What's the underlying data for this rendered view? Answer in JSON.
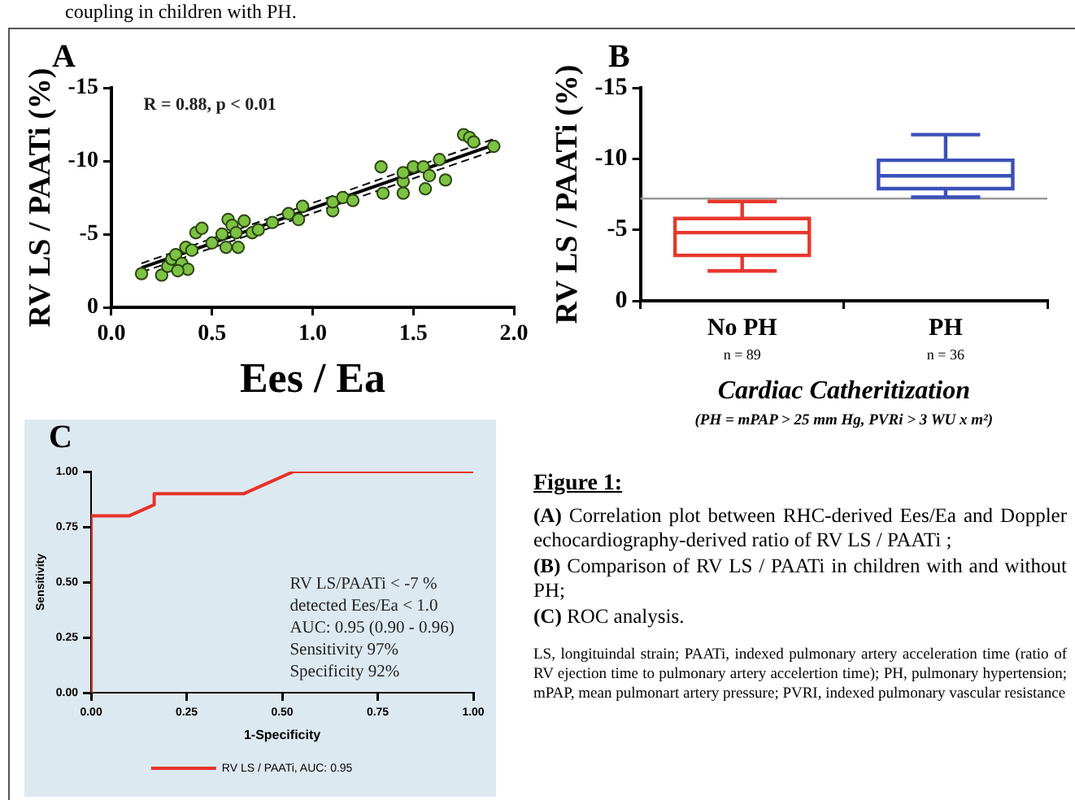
{
  "chart_data": [
    {
      "type": "other",
      "annotations": [
        "coupling in children with PH."
      ]
    },
    {
      "type": "scatter",
      "title": "A",
      "xlabel": "Ees / Ea",
      "ylabel": "RV LS / PAATi (%)",
      "xlim": [
        0,
        2
      ],
      "ylim": [
        0,
        -15
      ],
      "xticks": [
        {
          "value": 0,
          "label": "0.0"
        },
        {
          "value": 0.5,
          "label": "0.5"
        },
        {
          "value": 1,
          "label": "1.0"
        },
        {
          "value": 1.5,
          "label": "1.5"
        },
        {
          "value": 2,
          "label": "2.0"
        }
      ],
      "yticks": [
        -15,
        -10,
        -5,
        0
      ],
      "grid": false,
      "annotations": [
        "R = 0.88, p < 0.01"
      ],
      "series": [
        {
          "type": "scatter",
          "marker": "circle",
          "color": "#7dc242",
          "x": [
            0.15,
            0.25,
            0.28,
            0.3,
            0.32,
            0.35,
            0.37,
            0.38,
            0.33,
            0.4,
            0.42,
            0.45,
            0.5,
            0.55,
            0.57,
            0.58,
            0.6,
            0.62,
            0.63,
            0.66,
            0.7,
            0.73,
            0.8,
            0.88,
            0.93,
            0.95,
            1.1,
            1.1,
            1.15,
            1.2,
            1.34,
            1.35,
            1.45,
            1.45,
            1.45,
            1.5,
            1.55,
            1.56,
            1.58,
            1.63,
            1.66,
            1.75,
            1.78,
            1.8,
            1.9
          ],
          "values": [
            -2.3,
            -2.2,
            -2.8,
            -3.3,
            -3.6,
            -3.0,
            -4.1,
            -2.6,
            -2.5,
            -3.9,
            -5.1,
            -5.4,
            -4.4,
            -5.0,
            -4.1,
            -6.0,
            -5.6,
            -5.1,
            -4.1,
            -5.9,
            -5.1,
            -5.3,
            -5.8,
            -6.4,
            -6.0,
            -6.9,
            -6.6,
            -7.2,
            -7.5,
            -7.3,
            -9.6,
            -7.8,
            -7.8,
            -8.6,
            -9.2,
            -9.6,
            -9.6,
            -8.1,
            -9.0,
            -10.1,
            -8.7,
            -11.8,
            -11.6,
            -11.3,
            -11.0
          ]
        },
        {
          "type": "line",
          "marker": "none",
          "color": "#000000",
          "x": [
            0.15,
            1.9
          ],
          "values": [
            -2.7,
            -11.1
          ]
        },
        {
          "type": "line",
          "marker": "none",
          "line_style": "dashed",
          "color": "#000000",
          "x": [
            0.15,
            1.9
          ],
          "values": [
            -3.0,
            -11.5
          ]
        },
        {
          "type": "line",
          "marker": "none",
          "line_style": "dashed",
          "color": "#000000",
          "x": [
            0.15,
            1.9
          ],
          "values": [
            -2.4,
            -10.7
          ]
        }
      ]
    },
    {
      "type": "box",
      "title": "B",
      "categories": [
        "No PH",
        "PH"
      ],
      "xlabel": "Cardiac Catheritization",
      "ylabel": "RV LS / PAATi (%)",
      "ylim": [
        0,
        -15
      ],
      "yticks": [
        -15,
        -10,
        -5,
        0
      ],
      "grid": false,
      "boxes": [
        {
          "low": -7.0,
          "q1": -5.8,
          "median": -4.8,
          "q3": -3.2,
          "high": -2.1
        },
        {
          "low": -11.7,
          "q1": -9.9,
          "median": -8.8,
          "q3": -7.9,
          "high": -7.3
        }
      ],
      "colors": [
        "#e8382c",
        "#3c50b8"
      ],
      "ref_lines": [
        {
          "axis": "y",
          "value": -7.2,
          "color": "#999999"
        }
      ],
      "annotations": [
        "n = 89",
        "n = 36",
        "(PH = mPAP > 25 mm Hg, PVRi > 3 WU x m²)"
      ]
    },
    {
      "type": "line",
      "title": "C",
      "xlabel": "1-Specificity",
      "ylabel": "Sensitivity",
      "xlim": [
        0,
        1
      ],
      "ylim": [
        0,
        1
      ],
      "xticks": [
        {
          "value": 0,
          "label": "0.00"
        },
        {
          "value": 0.25,
          "label": "0.25"
        },
        {
          "value": 0.5,
          "label": "0.50"
        },
        {
          "value": 0.75,
          "label": "0.75"
        },
        {
          "value": 1,
          "label": "1.00"
        }
      ],
      "yticks": [
        {
          "value": 0,
          "label": "0.00"
        },
        {
          "value": 0.25,
          "label": "0.25"
        },
        {
          "value": 0.5,
          "label": "0.50"
        },
        {
          "value": 0.75,
          "label": "0.75"
        },
        {
          "value": 1,
          "label": "1.00"
        }
      ],
      "grid": false,
      "legend": "bottom",
      "marker": "none",
      "series": [
        {
          "name": "RV LS / PAATi, AUC: 0.95",
          "color": "#e8312a",
          "x": [
            0,
            0,
            0.1,
            0.165,
            0.165,
            0.4,
            0.53,
            1
          ],
          "values": [
            0,
            0.8,
            0.8,
            0.85,
            0.9,
            0.9,
            1,
            1
          ]
        }
      ],
      "annotations": [
        "RV LS/PAATi < -7 %",
        "detected Ees/Ea < 1.0",
        "AUC: 0.95 (0.90 - 0.96)",
        "Sensitivity 97%",
        "Specificity 92%"
      ]
    },
    {
      "type": "other",
      "title": "Figure 1:",
      "annotations": [
        "(A) Correlation plot between RHC-derived Ees/Ea and Doppler echocardiography-derived ratio of RV LS / PAATi ;",
        "(B) Comparison of RV LS / PAATi in children with and without PH;",
        "(C) ROC analysis.",
        "LS, longituindal strain; PAATi, indexed pulmonary artery acceleration time (ratio of RV ejection time to pulmonary artery accelertion time); PH, pulmonary hypertension; mPAP, mean pulmonart artery pressure; PVRI, indexed pulmonary vascular resistance"
      ]
    }
  ]
}
